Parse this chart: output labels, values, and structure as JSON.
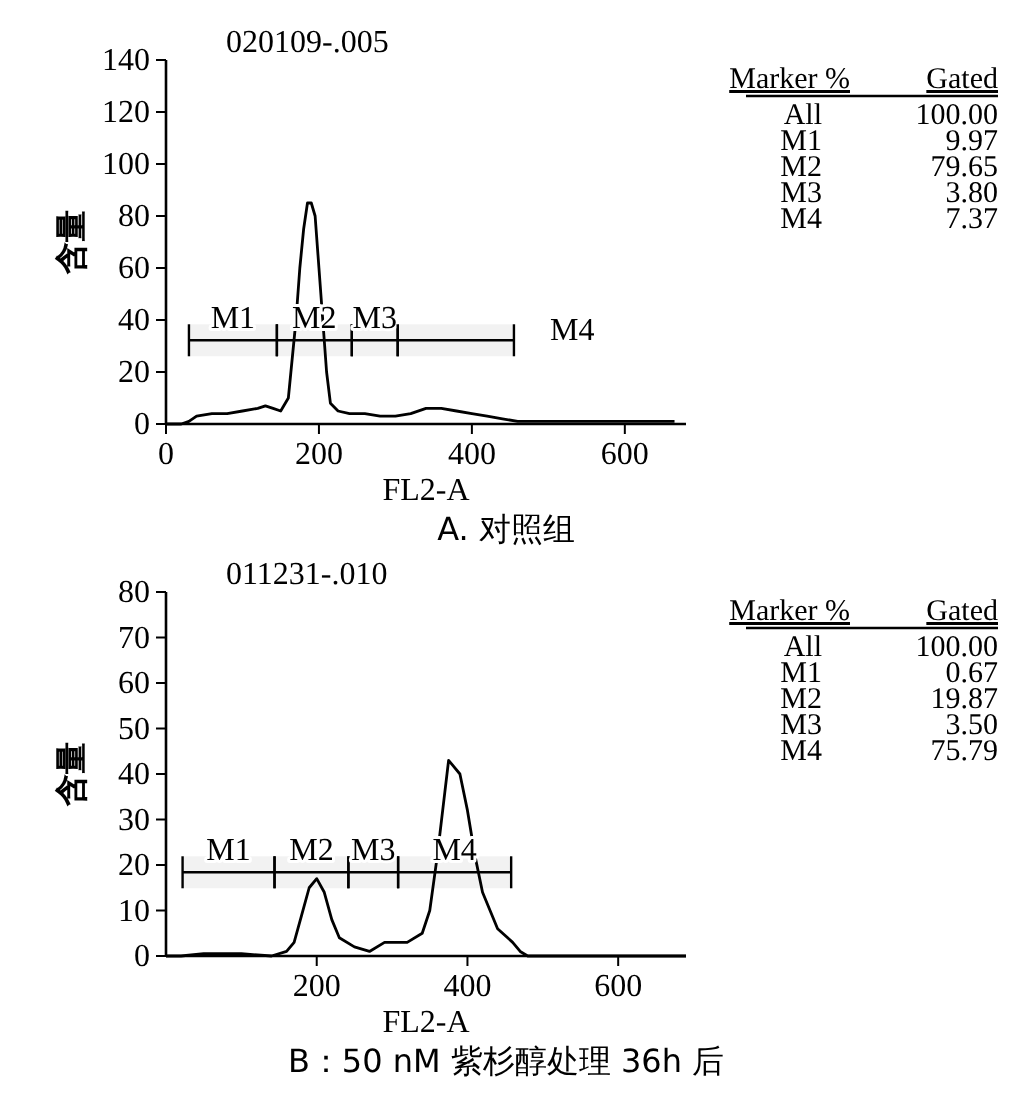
{
  "chart_data": [
    {
      "type": "line",
      "title": "020109-.005",
      "subtitle": "A. 对照组",
      "xlabel": "FL2-A",
      "ylabel": "含量",
      "xlim": [
        0,
        680
      ],
      "ylim": [
        0,
        140
      ],
      "xticks": [
        0,
        200,
        400,
        600
      ],
      "yticks": [
        0,
        20,
        40,
        60,
        80,
        100,
        120,
        140
      ],
      "grid": false,
      "marker": "none",
      "series": [
        {
          "color": "#000000",
          "x": [
            0,
            20,
            30,
            40,
            60,
            80,
            100,
            120,
            130,
            140,
            150,
            160,
            165,
            170,
            175,
            180,
            185,
            190,
            195,
            200,
            205,
            210,
            215,
            225,
            240,
            260,
            280,
            300,
            320,
            340,
            360,
            380,
            400,
            420,
            440,
            460,
            500,
            560,
            620,
            665
          ],
          "values": [
            0,
            0,
            1,
            3,
            4,
            4,
            5,
            6,
            7,
            6,
            5,
            10,
            25,
            40,
            60,
            75,
            85,
            85,
            80,
            60,
            40,
            20,
            8,
            5,
            4,
            4,
            3,
            3,
            4,
            6,
            6,
            5,
            4,
            3,
            2,
            1,
            1,
            1,
            1,
            1
          ]
        }
      ],
      "bands": [
        {
          "axis": "x",
          "from": 30,
          "to": 145,
          "label": "M1"
        },
        {
          "axis": "x",
          "from": 145,
          "to": 243,
          "label": "M2"
        },
        {
          "axis": "x",
          "from": 243,
          "to": 303,
          "label": "M3"
        },
        {
          "axis": "x",
          "from": 303,
          "to": 455,
          "label": "M4"
        }
      ],
      "annotations": [
        "Marker %",
        "Gated",
        "All",
        "100.00",
        "M1",
        "9.97",
        "M2",
        "79.65",
        "M3",
        "3.80",
        "M4",
        "7.37"
      ]
    },
    {
      "type": "line",
      "title": "011231-.010",
      "subtitle": "B：50 nM 紫杉醇处理 36h 后",
      "xlabel": "FL2-A",
      "ylabel": "含量",
      "xlim": [
        0,
        690
      ],
      "ylim": [
        0,
        80
      ],
      "xticks": [
        200,
        400,
        600
      ],
      "yticks": [
        0,
        10,
        20,
        30,
        40,
        50,
        60,
        70,
        80
      ],
      "grid": false,
      "marker": "none",
      "series": [
        {
          "color": "#000000",
          "x": [
            0,
            20,
            50,
            100,
            140,
            160,
            170,
            180,
            190,
            200,
            210,
            220,
            230,
            250,
            270,
            290,
            320,
            340,
            350,
            360,
            370,
            375,
            380,
            390,
            400,
            410,
            420,
            430,
            440,
            460,
            470,
            480,
            500,
            690
          ],
          "values": [
            0,
            0,
            0.5,
            0.5,
            0,
            1,
            3,
            9,
            15,
            17,
            14,
            8,
            4,
            2,
            1,
            3,
            3,
            5,
            10,
            22,
            36,
            43,
            42,
            40,
            32,
            22,
            14,
            10,
            6,
            3,
            1,
            0,
            0,
            0
          ]
        }
      ],
      "bands": [
        {
          "axis": "x",
          "from": 22,
          "to": 144,
          "label": "M1"
        },
        {
          "axis": "x",
          "from": 144,
          "to": 242,
          "label": "M2"
        },
        {
          "axis": "x",
          "from": 242,
          "to": 308,
          "label": "M3"
        },
        {
          "axis": "x",
          "from": 308,
          "to": 458,
          "label": "M4"
        }
      ],
      "annotations": [
        "Marker %",
        "Gated",
        "All",
        "100.00",
        "M1",
        "0.67",
        "M2",
        "19.87",
        "M3",
        "3.50",
        "M4",
        "75.79"
      ]
    }
  ]
}
